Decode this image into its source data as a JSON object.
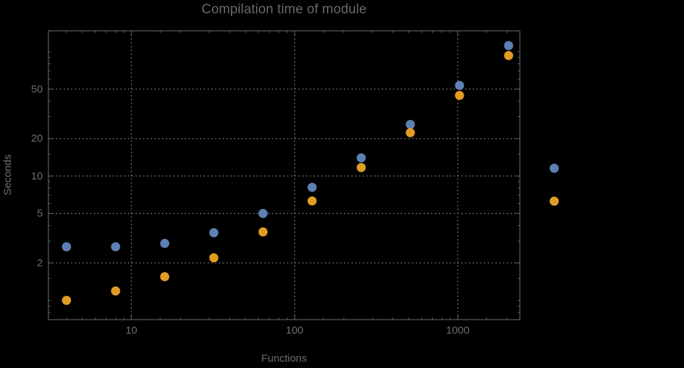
{
  "chart_data": {
    "type": "scatter",
    "title": "Compilation time of module",
    "xlabel": "Functions",
    "ylabel": "Seconds",
    "x_scale": "log",
    "y_scale": "log",
    "xlim": [
      3.1,
      2400
    ],
    "ylim": [
      0.7,
      147
    ],
    "grid": "dotted gray lines at labeled major ticks",
    "x_ticks": [
      {
        "value": 10,
        "label": "10"
      },
      {
        "value": 100,
        "label": "100"
      },
      {
        "value": 1000,
        "label": "1000"
      }
    ],
    "y_ticks": [
      {
        "value": 2,
        "label": "2"
      },
      {
        "value": 5,
        "label": "5"
      },
      {
        "value": 10,
        "label": "10"
      },
      {
        "value": 20,
        "label": "20"
      },
      {
        "value": 50,
        "label": "50"
      }
    ],
    "x_minor_ticks": [
      4,
      5,
      6,
      7,
      8,
      9,
      15,
      20,
      30,
      40,
      50,
      60,
      70,
      80,
      90,
      150,
      200,
      300,
      400,
      500,
      600,
      700,
      800,
      900,
      1500,
      2000
    ],
    "y_minor_ticks": [
      0.7,
      0.8,
      0.9,
      1,
      1.5,
      3,
      4,
      6,
      7,
      8,
      9,
      15,
      30,
      40,
      60,
      70,
      80,
      90,
      100
    ],
    "x": [
      4,
      8,
      16,
      32,
      64,
      128,
      256,
      512,
      1024,
      2048
    ],
    "series": [
      {
        "name": "series-1-blue",
        "color": "#5E81B5",
        "values": [
          2.7,
          2.7,
          2.87,
          3.5,
          5.0,
          8.1,
          14.0,
          26.0,
          53.5,
          112
        ]
      },
      {
        "name": "series-2-orange",
        "color": "#E19C24",
        "values": [
          1.0,
          1.19,
          1.55,
          2.2,
          3.55,
          6.3,
          11.7,
          22.3,
          44.5,
          93
        ]
      }
    ],
    "legend": {
      "position": "right-of-frame",
      "labels_visible": false,
      "marker_colors": [
        "#5E81B5",
        "#E19C24"
      ]
    }
  },
  "colors": {
    "background": "#000000",
    "frame": "#5d5d5d",
    "grid": "#757575",
    "text": "#6e6e6e",
    "title": "#6a6a6a",
    "series1": "#5E81B5",
    "series2": "#E19C24"
  }
}
